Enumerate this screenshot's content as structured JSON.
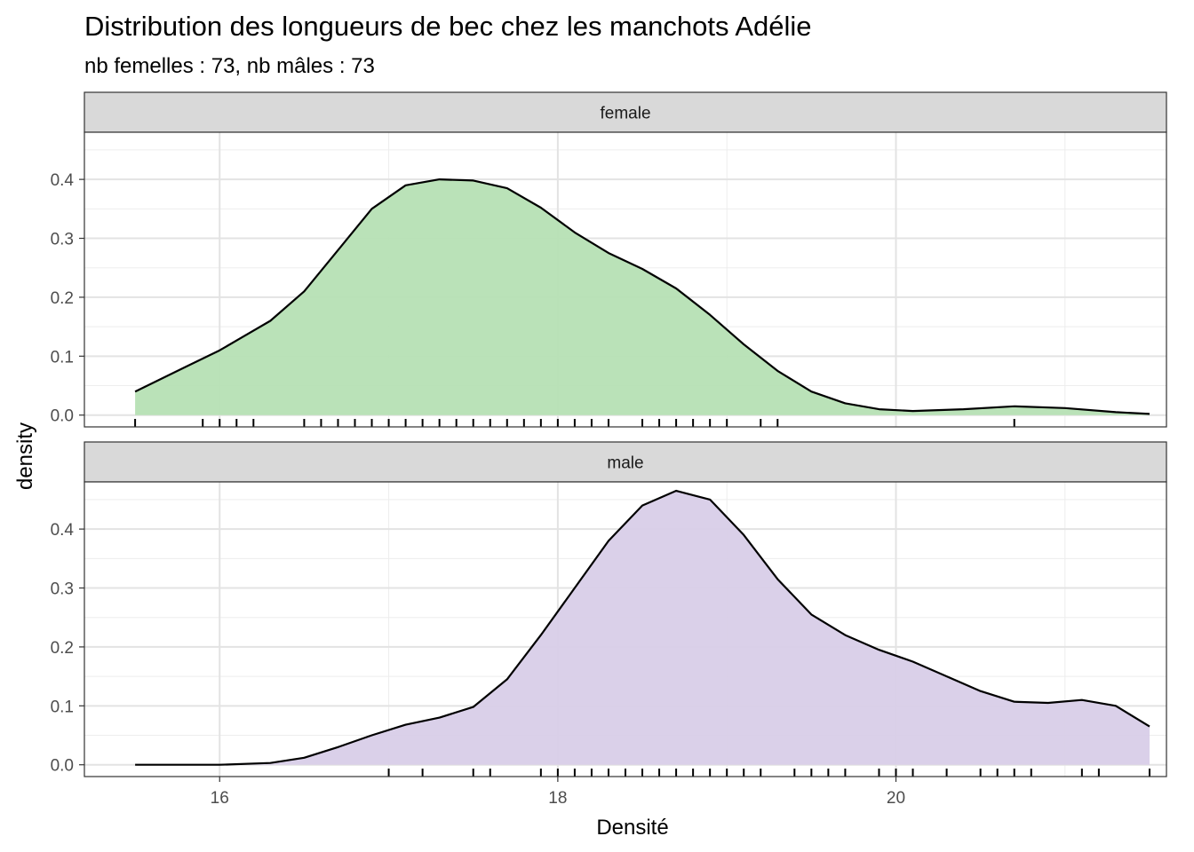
{
  "chart_data": {
    "type": "area",
    "title": "Distribution des longueurs de bec chez les manchots Adélie",
    "subtitle": "nb femelles : 73, nb mâles : 73",
    "xlabel": "Densité",
    "ylabel": "density",
    "xlim": [
      15.2,
      21.6
    ],
    "ylim": [
      -0.02,
      0.48
    ],
    "x_ticks": [
      16,
      18,
      20
    ],
    "y_ticks": [
      0.0,
      0.1,
      0.2,
      0.3,
      0.4
    ],
    "y_tick_labels": [
      "0.0",
      "0.1",
      "0.2",
      "0.3",
      "0.4"
    ],
    "grid": true,
    "legend": "none",
    "facets": [
      {
        "label": "female",
        "fill": "#b6e0b4",
        "x": [
          15.5,
          15.8,
          16.0,
          16.3,
          16.5,
          16.7,
          16.9,
          17.1,
          17.3,
          17.5,
          17.7,
          17.9,
          18.1,
          18.3,
          18.5,
          18.7,
          18.9,
          19.1,
          19.3,
          19.5,
          19.7,
          19.9,
          20.1,
          20.4,
          20.7,
          21.0,
          21.3,
          21.5
        ],
        "y": [
          0.04,
          0.082,
          0.11,
          0.16,
          0.21,
          0.28,
          0.35,
          0.39,
          0.4,
          0.398,
          0.385,
          0.352,
          0.31,
          0.275,
          0.248,
          0.215,
          0.17,
          0.12,
          0.075,
          0.04,
          0.02,
          0.01,
          0.007,
          0.01,
          0.015,
          0.012,
          0.005,
          0.002
        ],
        "rug": [
          15.5,
          15.9,
          16.0,
          16.1,
          16.2,
          16.5,
          16.6,
          16.7,
          16.8,
          16.9,
          17.0,
          17.1,
          17.2,
          17.3,
          17.4,
          17.5,
          17.6,
          17.7,
          17.8,
          17.9,
          18.0,
          18.1,
          18.2,
          18.3,
          18.5,
          18.6,
          18.7,
          18.8,
          18.9,
          19.0,
          19.2,
          19.3,
          20.7
        ]
      },
      {
        "label": "male",
        "fill": "#d8cee8",
        "x": [
          15.5,
          16.0,
          16.3,
          16.5,
          16.7,
          16.9,
          17.1,
          17.3,
          17.5,
          17.7,
          17.9,
          18.1,
          18.3,
          18.5,
          18.7,
          18.9,
          19.1,
          19.3,
          19.5,
          19.7,
          19.9,
          20.1,
          20.3,
          20.5,
          20.7,
          20.9,
          21.1,
          21.3,
          21.5
        ],
        "y": [
          0.0,
          0.0,
          0.003,
          0.012,
          0.03,
          0.05,
          0.068,
          0.08,
          0.098,
          0.145,
          0.22,
          0.3,
          0.38,
          0.44,
          0.465,
          0.45,
          0.39,
          0.315,
          0.255,
          0.22,
          0.195,
          0.175,
          0.15,
          0.125,
          0.107,
          0.105,
          0.11,
          0.1,
          0.065
        ],
        "rug": [
          17.0,
          17.2,
          17.5,
          17.6,
          17.9,
          18.0,
          18.1,
          18.2,
          18.3,
          18.4,
          18.5,
          18.6,
          18.7,
          18.8,
          18.9,
          19.0,
          19.1,
          19.2,
          19.4,
          19.5,
          19.6,
          19.7,
          19.9,
          20.0,
          20.1,
          20.3,
          20.5,
          20.6,
          20.7,
          20.8,
          21.1,
          21.2,
          21.5
        ]
      }
    ]
  }
}
